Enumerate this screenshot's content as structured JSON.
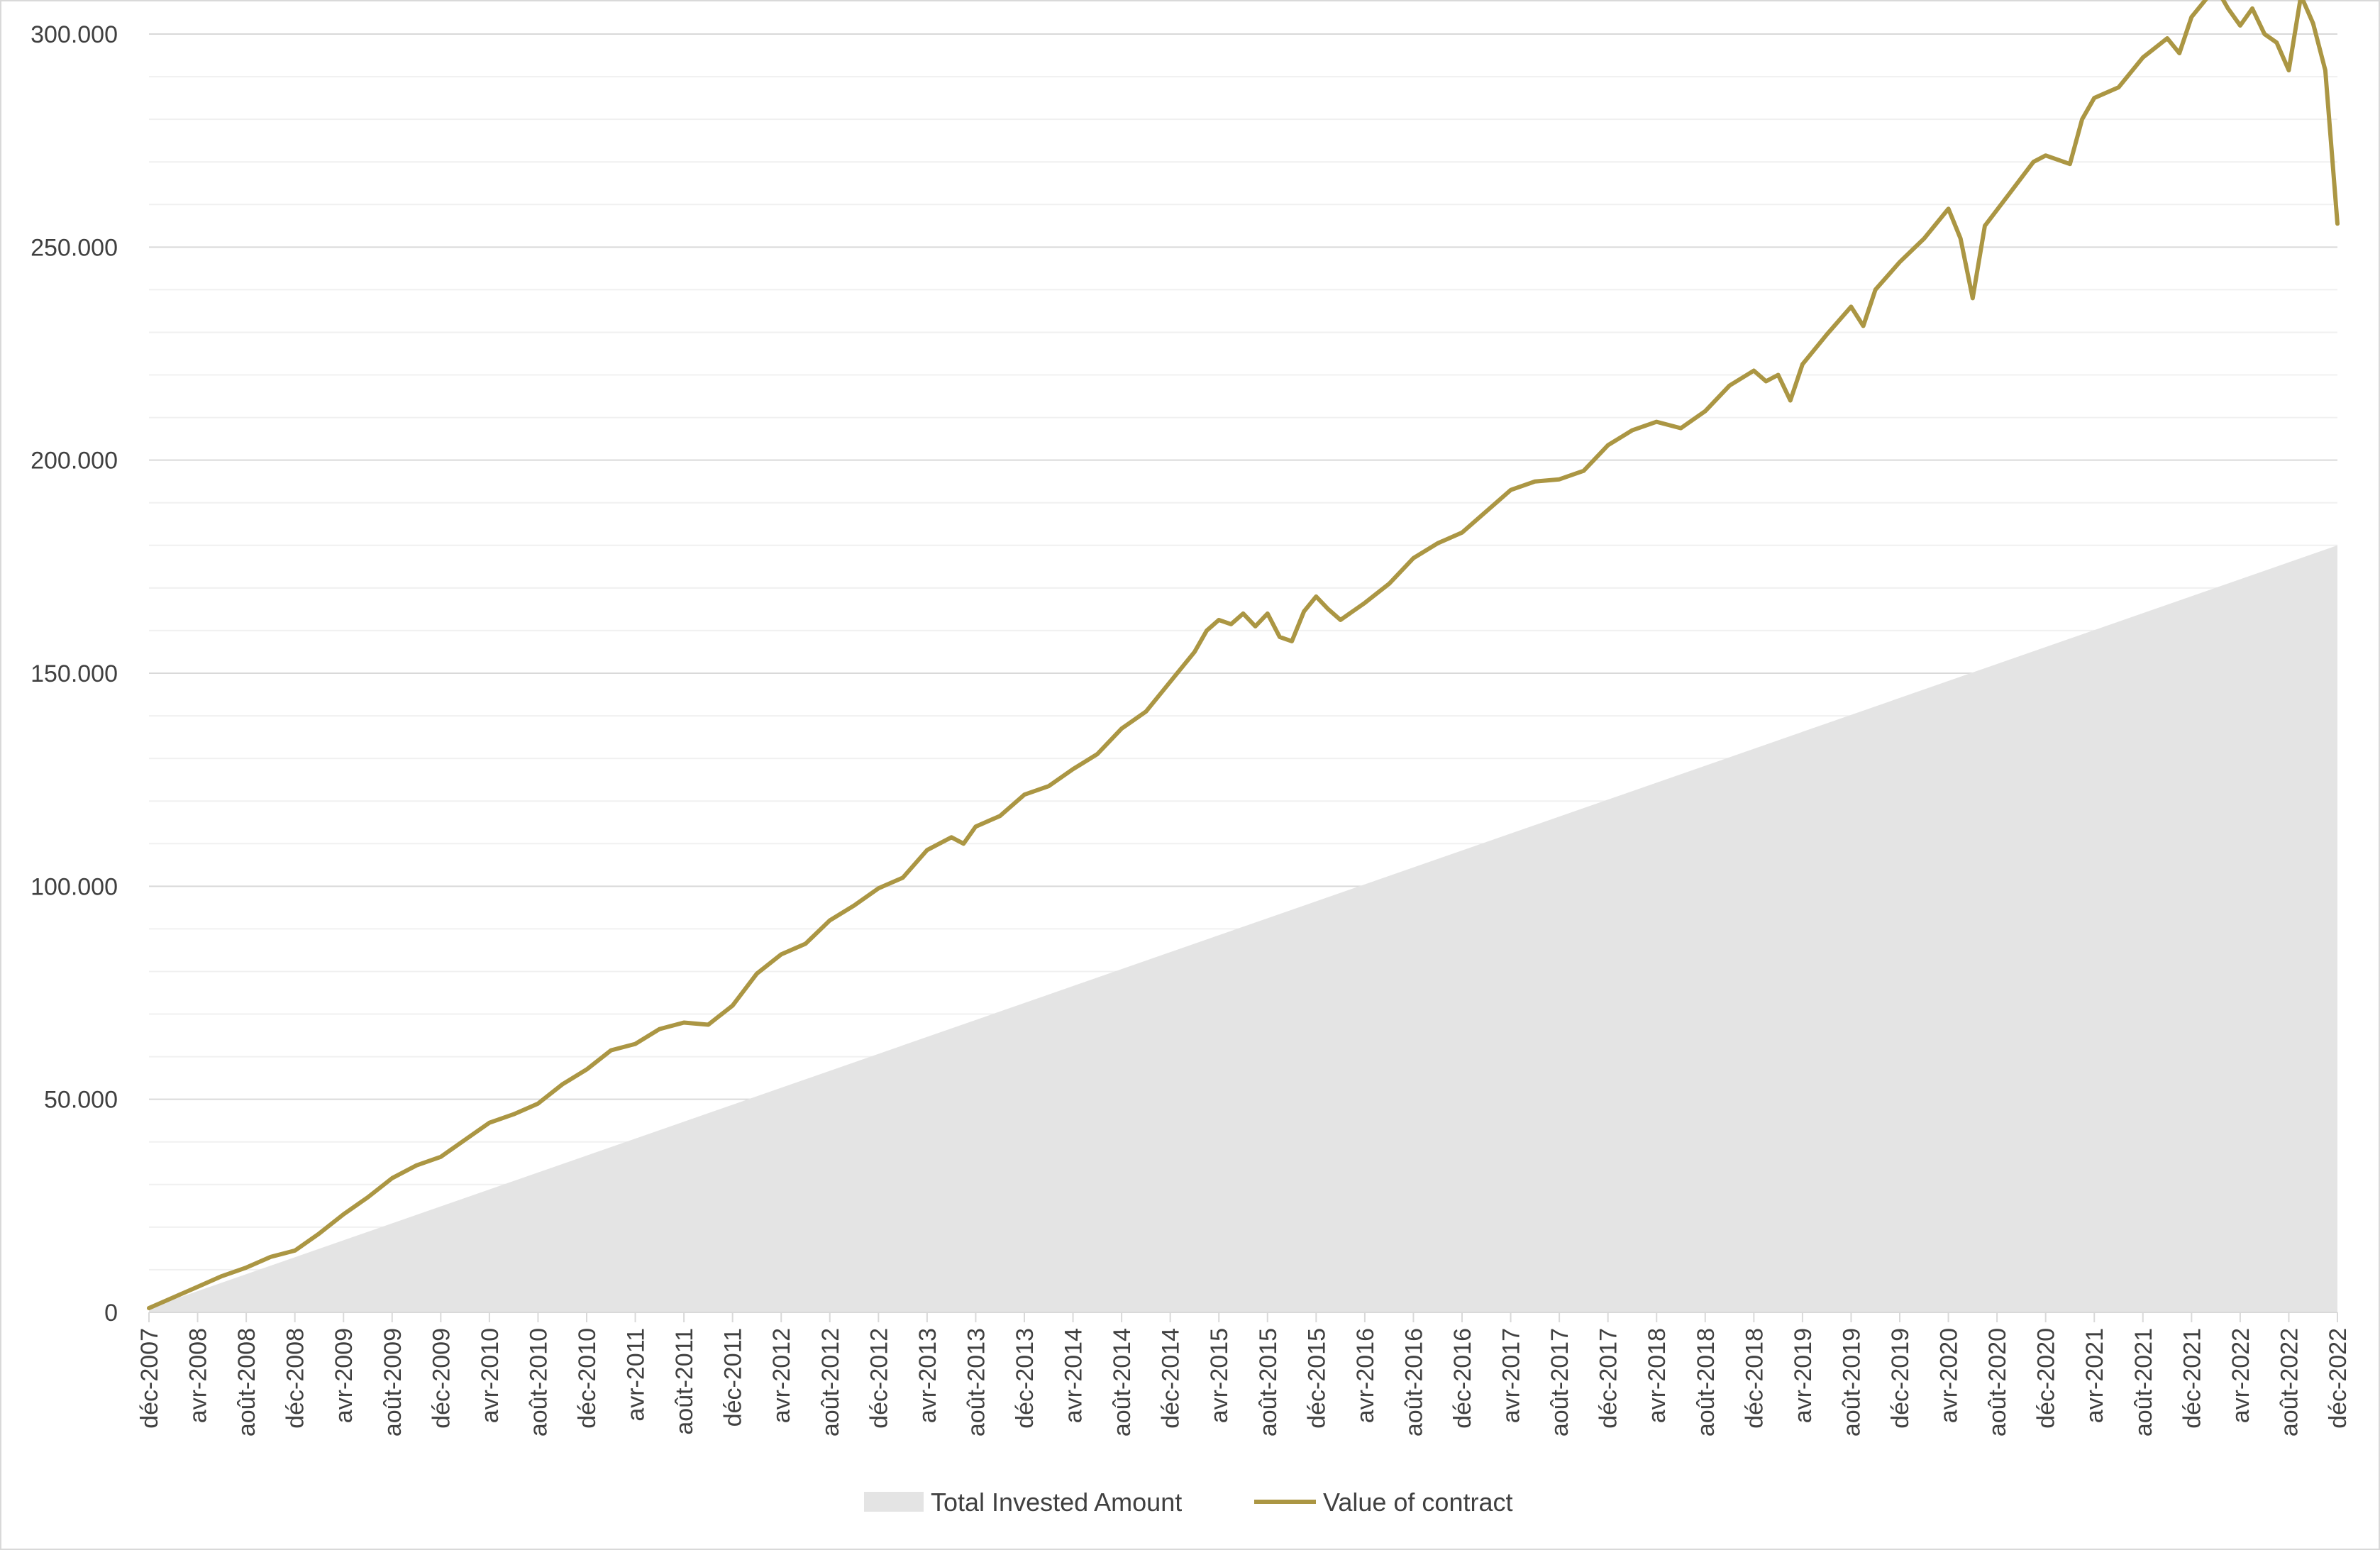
{
  "chart_data": {
    "type": "area",
    "title": "",
    "xlabel": "",
    "ylabel": "",
    "ylim": [
      0,
      300000
    ],
    "grid": true,
    "legend_position": "bottom",
    "y_ticks": [
      0,
      50000,
      100000,
      150000,
      200000,
      250000,
      300000
    ],
    "y_tick_labels": [
      "0",
      "50.000",
      "100.000",
      "150.000",
      "200.000",
      "250.000",
      "300.000"
    ],
    "x_tick_labels": [
      "déc-2007",
      "avr-2008",
      "août-2008",
      "déc-2008",
      "avr-2009",
      "août-2009",
      "déc-2009",
      "avr-2010",
      "août-2010",
      "déc-2010",
      "avr-2011",
      "août-2011",
      "déc-2011",
      "avr-2012",
      "août-2012",
      "déc-2012",
      "avr-2013",
      "août-2013",
      "déc-2013",
      "avr-2014",
      "août-2014",
      "déc-2014",
      "avr-2015",
      "août-2015",
      "déc-2015",
      "avr-2016",
      "août-2016",
      "déc-2016",
      "avr-2017",
      "août-2017",
      "déc-2017",
      "avr-2018",
      "août-2018",
      "déc-2018",
      "avr-2019",
      "août-2019",
      "déc-2019",
      "avr-2020",
      "août-2020",
      "déc-2020",
      "avr-2021",
      "août-2021",
      "déc-2021",
      "avr-2022",
      "août-2022",
      "déc-2022"
    ],
    "x_start": "2007-12",
    "x_end": "2022-12",
    "series": [
      {
        "name": "Total Invested Amount",
        "kind": "area",
        "color": "#e4e4e4",
        "points": [
          [
            "2007-12",
            1000
          ],
          [
            "2022-12",
            180000
          ]
        ]
      },
      {
        "name": "Value of contract",
        "kind": "line",
        "color": "#ab9643",
        "points": [
          [
            "2007-12",
            1000
          ],
          [
            "2008-02",
            3500
          ],
          [
            "2008-04",
            6000
          ],
          [
            "2008-06",
            8500
          ],
          [
            "2008-08",
            10500
          ],
          [
            "2008-10",
            13000
          ],
          [
            "2008-12",
            14500
          ],
          [
            "2009-02",
            18500
          ],
          [
            "2009-04",
            23000
          ],
          [
            "2009-06",
            27000
          ],
          [
            "2009-08",
            31500
          ],
          [
            "2009-10",
            34500
          ],
          [
            "2009-12",
            36500
          ],
          [
            "2010-02",
            40500
          ],
          [
            "2010-04",
            44500
          ],
          [
            "2010-06",
            46500
          ],
          [
            "2010-08",
            49000
          ],
          [
            "2010-10",
            53500
          ],
          [
            "2010-12",
            57000
          ],
          [
            "2011-02",
            61500
          ],
          [
            "2011-04",
            63000
          ],
          [
            "2011-06",
            66500
          ],
          [
            "2011-08",
            68000
          ],
          [
            "2011-10",
            67500
          ],
          [
            "2011-12",
            72000
          ],
          [
            "2012-02",
            79500
          ],
          [
            "2012-04",
            84000
          ],
          [
            "2012-06",
            86500
          ],
          [
            "2012-08",
            92000
          ],
          [
            "2012-10",
            95500
          ],
          [
            "2012-12",
            99500
          ],
          [
            "2013-02",
            102000
          ],
          [
            "2013-04",
            108500
          ],
          [
            "2013-06",
            111500
          ],
          [
            "2013-07",
            110000
          ],
          [
            "2013-08",
            114000
          ],
          [
            "2013-10",
            116500
          ],
          [
            "2013-12",
            121500
          ],
          [
            "2014-02",
            123500
          ],
          [
            "2014-04",
            127500
          ],
          [
            "2014-06",
            131000
          ],
          [
            "2014-08",
            137000
          ],
          [
            "2014-10",
            141000
          ],
          [
            "2014-12",
            148000
          ],
          [
            "2015-02",
            155000
          ],
          [
            "2015-03",
            160000
          ],
          [
            "2015-04",
            162500
          ],
          [
            "2015-05",
            161500
          ],
          [
            "2015-06",
            164000
          ],
          [
            "2015-07",
            161000
          ],
          [
            "2015-08",
            164000
          ],
          [
            "2015-09",
            158500
          ],
          [
            "2015-10",
            157500
          ],
          [
            "2015-11",
            164500
          ],
          [
            "2015-12",
            168000
          ],
          [
            "2016-01",
            165000
          ],
          [
            "2016-02",
            162500
          ],
          [
            "2016-04",
            166500
          ],
          [
            "2016-06",
            171000
          ],
          [
            "2016-08",
            177000
          ],
          [
            "2016-10",
            180500
          ],
          [
            "2016-12",
            183000
          ],
          [
            "2017-02",
            188000
          ],
          [
            "2017-04",
            193000
          ],
          [
            "2017-06",
            195000
          ],
          [
            "2017-08",
            195500
          ],
          [
            "2017-10",
            197500
          ],
          [
            "2017-12",
            203500
          ],
          [
            "2018-02",
            207000
          ],
          [
            "2018-04",
            209000
          ],
          [
            "2018-06",
            207500
          ],
          [
            "2018-08",
            211500
          ],
          [
            "2018-10",
            217500
          ],
          [
            "2018-12",
            221000
          ],
          [
            "2019-01",
            218500
          ],
          [
            "2019-02",
            220000
          ],
          [
            "2019-03",
            214000
          ],
          [
            "2019-04",
            222500
          ],
          [
            "2019-06",
            229500
          ],
          [
            "2019-08",
            236000
          ],
          [
            "2019-09",
            231500
          ],
          [
            "2019-10",
            240000
          ],
          [
            "2019-12",
            246500
          ],
          [
            "2020-02",
            252000
          ],
          [
            "2020-04",
            259000
          ],
          [
            "2020-05",
            252000
          ],
          [
            "2020-06",
            238000
          ],
          [
            "2020-07",
            255000
          ],
          [
            "2020-09",
            262500
          ],
          [
            "2020-11",
            270000
          ],
          [
            "2020-12",
            271500
          ],
          [
            "2021-02",
            269500
          ],
          [
            "2021-03",
            280000
          ],
          [
            "2021-04",
            285000
          ],
          [
            "2021-06",
            287500
          ],
          [
            "2021-08",
            294500
          ],
          [
            "2021-10",
            299000
          ],
          [
            "2021-11",
            295500
          ],
          [
            "2021-12",
            304000
          ],
          [
            "2022-02",
            311000
          ],
          [
            "2022-03",
            306000
          ],
          [
            "2022-04",
            302000
          ],
          [
            "2022-05",
            306000
          ],
          [
            "2022-06",
            300000
          ],
          [
            "2022-07",
            298000
          ],
          [
            "2022-08",
            291500
          ],
          [
            "2022-09",
            309000
          ],
          [
            "2022-10",
            302500
          ],
          [
            "2022-11",
            291500
          ],
          [
            "2022-12",
            255500
          ]
        ]
      }
    ]
  }
}
